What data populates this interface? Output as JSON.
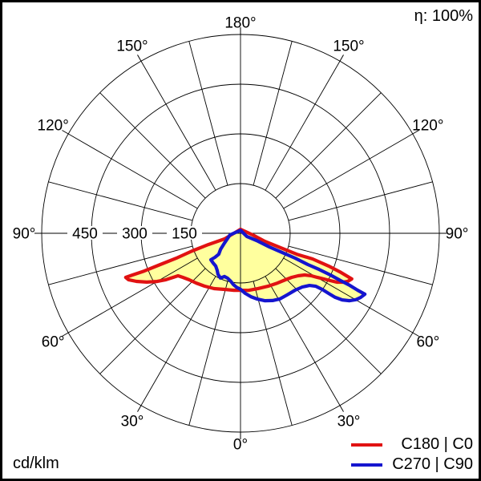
{
  "meta": {
    "efficiency_label": "η: 100%",
    "unit_label": "cd/klm"
  },
  "legend": [
    {
      "label": "C180 | C0",
      "color": "#e11212"
    },
    {
      "label": "C270 | C90",
      "color": "#1515cf"
    }
  ],
  "chart_data": {
    "type": "polar_intensity_distribution",
    "unit": "cd/klm",
    "efficiency": "100%",
    "fill_color": "#ffff9e",
    "grid_color": "#000000",
    "radial_axis": {
      "max": 600,
      "rings": [
        150,
        300,
        450,
        600
      ],
      "labeled_rings": [
        150,
        300,
        450
      ],
      "ring_label_texts": [
        "150",
        "300",
        "450"
      ]
    },
    "angular_axis": {
      "zero_position": "bottom",
      "spoke_step_deg": 15,
      "label_step_deg": 30,
      "labels": [
        "0°",
        "30°",
        "60°",
        "90°",
        "120°",
        "150°",
        "180°"
      ]
    },
    "series": [
      {
        "name": "C180 | C0",
        "color": "#e11212",
        "points": [
          [
            180,
            12
          ],
          [
            -70.7,
            51
          ],
          [
            -70.7,
            103
          ],
          [
            -69.9,
            155
          ],
          [
            -68.8,
            208
          ],
          [
            -68.7,
            260
          ],
          [
            -68.6,
            312
          ],
          [
            -68.9,
            350
          ],
          [
            -69,
            371
          ],
          [
            -67.5,
            366
          ],
          [
            -65.2,
            346
          ],
          [
            -62.5,
            319
          ],
          [
            -60,
            291
          ],
          [
            -58.1,
            265
          ],
          [
            -56.8,
            243
          ],
          [
            -55.8,
            228
          ],
          [
            -52.6,
            219
          ],
          [
            -47.8,
            209
          ],
          [
            -41.6,
            201
          ],
          [
            -34.3,
            193
          ],
          [
            -25.6,
            185
          ],
          [
            -15.9,
            176
          ],
          [
            -6.4,
            173
          ],
          [
            0,
            172
          ],
          [
            8,
            174
          ],
          [
            17.7,
            175
          ],
          [
            27.3,
            180
          ],
          [
            36.6,
            187
          ],
          [
            44,
            195
          ],
          [
            49.3,
            204
          ],
          [
            53.6,
            216
          ],
          [
            57,
            231
          ],
          [
            58.9,
            248
          ],
          [
            60.2,
            268
          ],
          [
            61.3,
            287
          ],
          [
            62.2,
            306
          ],
          [
            63.1,
            326
          ],
          [
            64.5,
            343
          ],
          [
            65.9,
            355
          ],
          [
            67.7,
            363
          ],
          [
            68.7,
            325
          ],
          [
            69.6,
            284
          ],
          [
            70.4,
            231
          ],
          [
            69.6,
            181
          ],
          [
            70.2,
            129
          ],
          [
            71.6,
            77
          ],
          [
            82.4,
            37
          ]
        ]
      },
      {
        "name": "C270 | C90",
        "color": "#1515cf",
        "points": [
          [
            180,
            9
          ],
          [
            -81.3,
            32
          ],
          [
            -59,
            56
          ],
          [
            -51.3,
            77
          ],
          [
            -46.1,
            91
          ],
          [
            -46.8,
            106
          ],
          [
            -48.3,
            120
          ],
          [
            -42.6,
            122
          ],
          [
            -37.1,
            124
          ],
          [
            -32.2,
            132
          ],
          [
            -28.8,
            141
          ],
          [
            -24.1,
            148
          ],
          [
            -20.3,
            139
          ],
          [
            -15.9,
            141
          ],
          [
            -11.3,
            148
          ],
          [
            -8,
            156
          ],
          [
            -4.3,
            163
          ],
          [
            0,
            169
          ],
          [
            4.6,
            182
          ],
          [
            9.3,
            194
          ],
          [
            14.4,
            205
          ],
          [
            19.7,
            216
          ],
          [
            25.5,
            225
          ],
          [
            30.9,
            231
          ],
          [
            37,
            233
          ],
          [
            43.8,
            238
          ],
          [
            49,
            247
          ],
          [
            52.9,
            261
          ],
          [
            54.9,
            278
          ],
          [
            55.5,
            299
          ],
          [
            55.7,
            322
          ],
          [
            55.9,
            345
          ],
          [
            56.8,
            367
          ],
          [
            58.3,
            387
          ],
          [
            60.1,
            402
          ],
          [
            61.9,
            411
          ],
          [
            63.9,
            418
          ],
          [
            64.1,
            393
          ],
          [
            64.5,
            365
          ],
          [
            64.7,
            334
          ],
          [
            65.1,
            299
          ],
          [
            65.3,
            261
          ],
          [
            65.1,
            224
          ],
          [
            65.5,
            181
          ],
          [
            65.2,
            139
          ],
          [
            64.7,
            96
          ],
          [
            65.8,
            53
          ],
          [
            63.4,
            22
          ]
        ]
      }
    ]
  }
}
